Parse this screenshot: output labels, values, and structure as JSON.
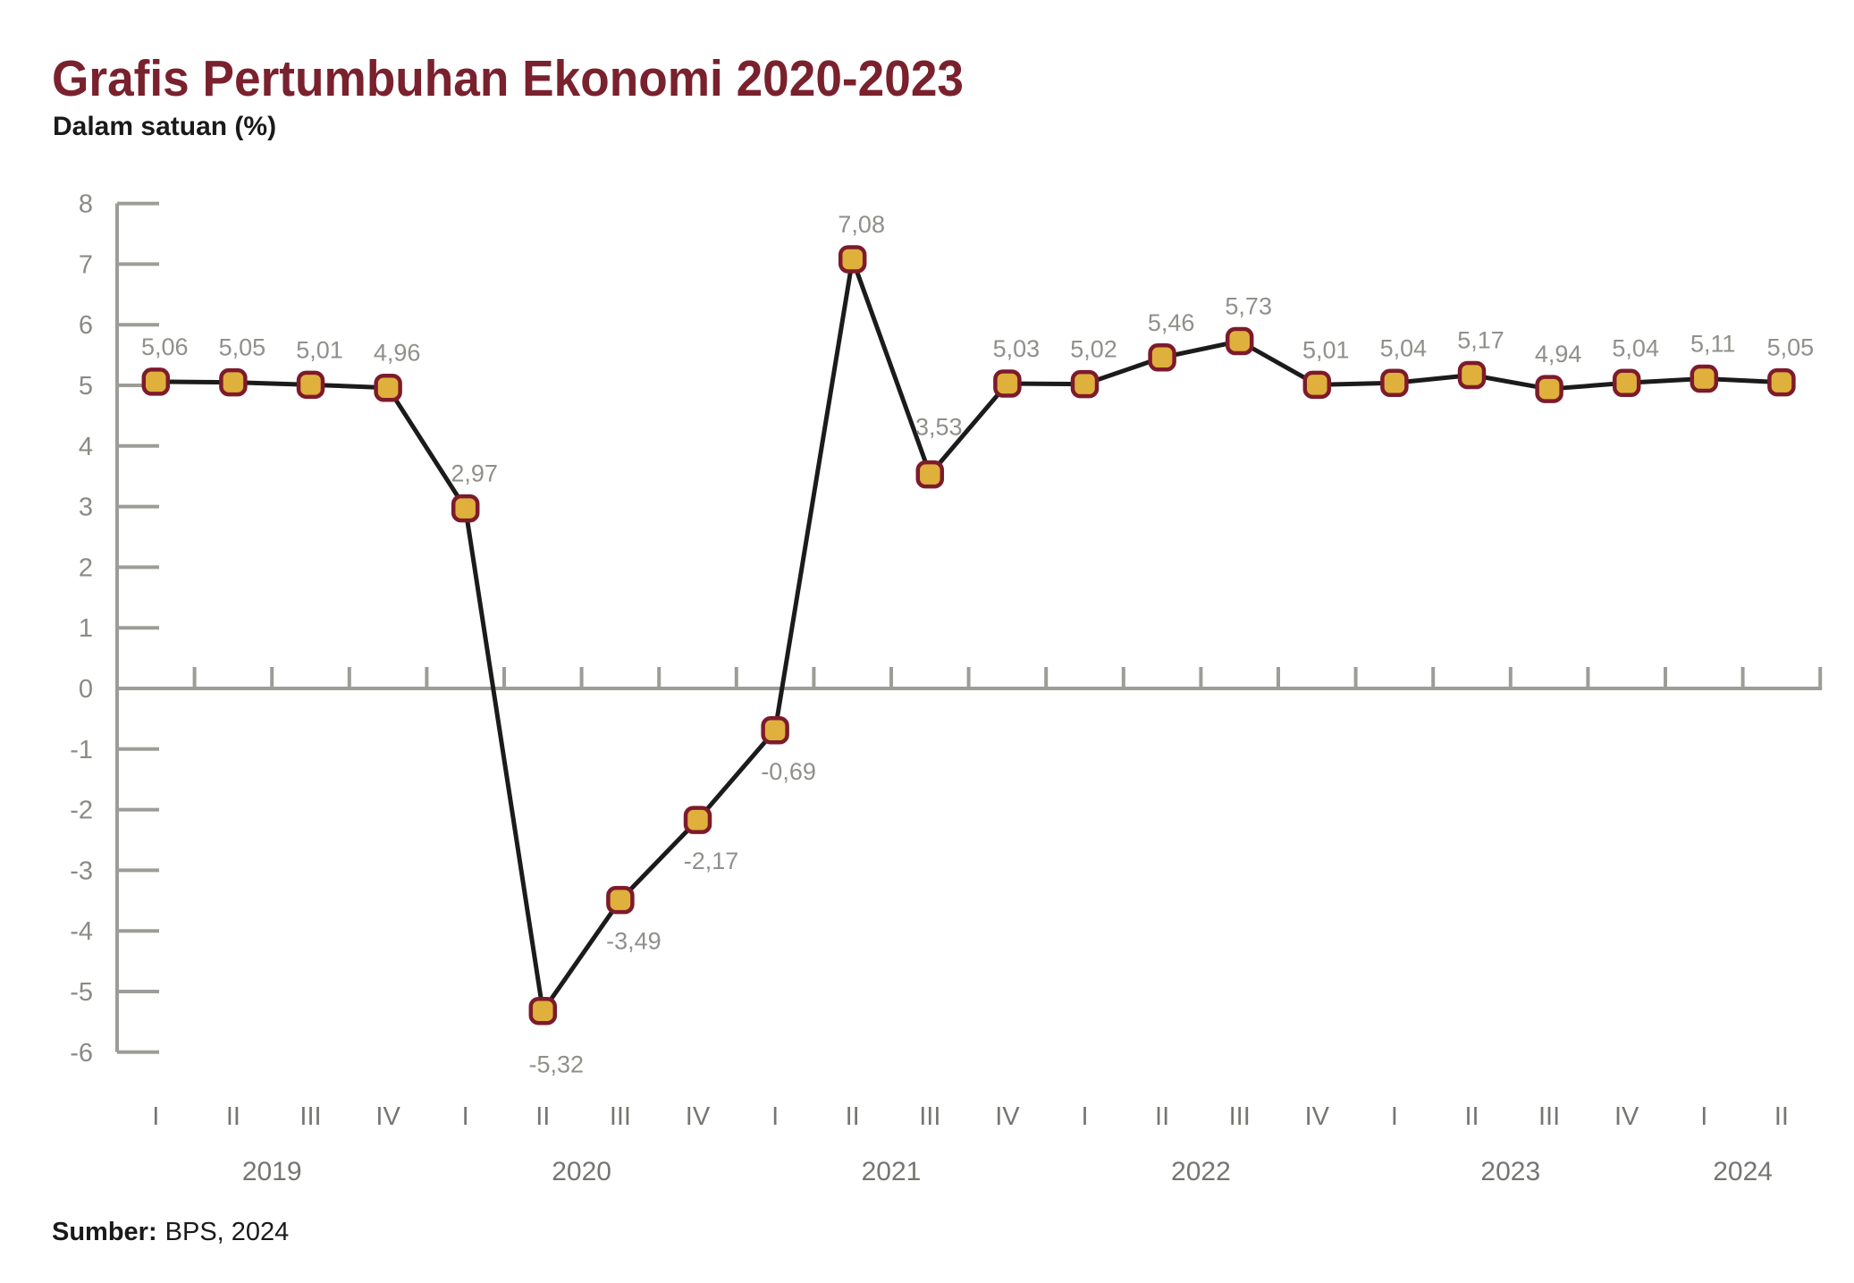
{
  "header": {
    "title": "Grafis Pertumbuhan Ekonomi 2020-2023",
    "subtitle": "Dalam satuan (%)"
  },
  "footer": {
    "source_label": "Sumber:",
    "source_value": "BPS, 2024"
  },
  "chart_data": {
    "type": "line",
    "title": "Grafis Pertumbuhan Ekonomi 2020-2023",
    "subtitle": "Dalam satuan (%)",
    "unit": "%",
    "source": "BPS, 2024",
    "ylim": [
      -6,
      8
    ],
    "ytick_step": 1,
    "grid": false,
    "legend": "none",
    "marker_shape": "rounded-square",
    "groups": [
      {
        "year": "2019",
        "quarters": [
          "I",
          "II",
          "III",
          "IV"
        ],
        "values": [
          5.06,
          5.05,
          5.01,
          4.96
        ],
        "labels": [
          "5,06",
          "5,05",
          "5,01",
          "4,96"
        ]
      },
      {
        "year": "2020",
        "quarters": [
          "I",
          "II",
          "III",
          "IV"
        ],
        "values": [
          2.97,
          -5.32,
          -3.49,
          -2.17
        ],
        "labels": [
          "2,97",
          "-5,32",
          "-3,49",
          "-2,17"
        ]
      },
      {
        "year": "2021",
        "quarters": [
          "I",
          "II",
          "III",
          "IV"
        ],
        "values": [
          -0.69,
          7.08,
          3.53,
          5.03
        ],
        "labels": [
          "-0,69",
          "7,08",
          "3,53",
          "5,03"
        ]
      },
      {
        "year": "2022",
        "quarters": [
          "I",
          "II",
          "III",
          "IV"
        ],
        "values": [
          5.02,
          5.46,
          5.73,
          5.01
        ],
        "labels": [
          "5,02",
          "5,46",
          "5,73",
          "5,01"
        ]
      },
      {
        "year": "2023",
        "quarters": [
          "I",
          "II",
          "III",
          "IV"
        ],
        "values": [
          5.04,
          5.17,
          4.94,
          5.04
        ],
        "labels": [
          "5,04",
          "5,17",
          "4,94",
          "5,04"
        ]
      },
      {
        "year": "2024",
        "quarters": [
          "I",
          "II"
        ],
        "values": [
          5.11,
          5.05
        ],
        "labels": [
          "5,11",
          "5,05"
        ]
      }
    ],
    "colors": {
      "line": "#1B1B1B",
      "marker_fill": "#E0B03C",
      "marker_border": "#7D1B2B",
      "axis": "#9C9C98",
      "data_label": "#8F8F8B",
      "axis_label": "#8A8A86",
      "category_label": "#757571",
      "title": "#7A212E",
      "text": "#1A1A1A",
      "background": "#FFFFFF"
    }
  }
}
